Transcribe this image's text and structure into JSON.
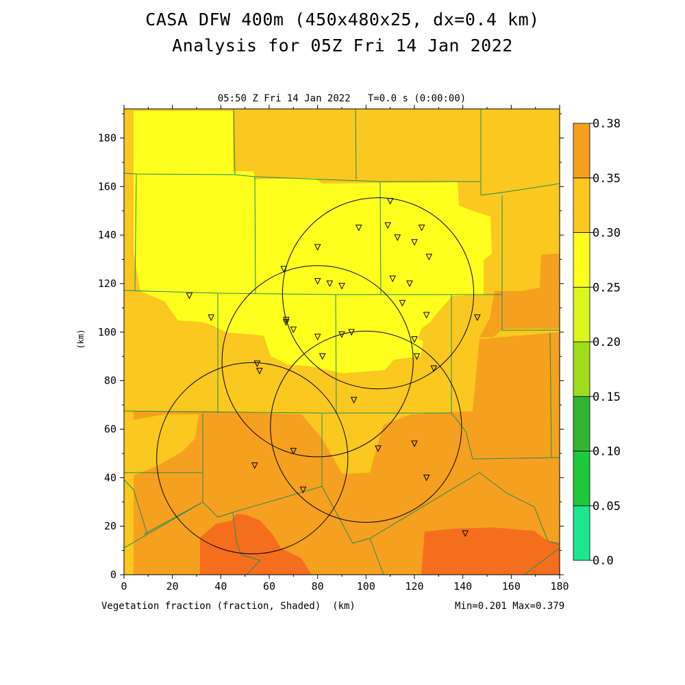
{
  "title_line1": "CASA DFW 400m (450x480x25, dx=0.4 km)",
  "title_line2": "Analysis for 05Z Fri 14 Jan 2022",
  "subtitle": "05:50 Z Fri 14 Jan 2022   T=0.0 s (0:00:00)",
  "field_label": "Vegetation fraction (fraction, Shaded)  (km)",
  "y_axis_label": "(km)",
  "min_max": "Min=0.201 Max=0.379",
  "x_ticks": [
    "0",
    "20",
    "40",
    "60",
    "80",
    "100",
    "120",
    "140",
    "160",
    "180"
  ],
  "y_ticks": [
    "0",
    "20",
    "40",
    "60",
    "80",
    "100",
    "120",
    "140",
    "160",
    "180"
  ],
  "colorbar": {
    "labels": [
      "0.0",
      "0.05",
      "0.10",
      "0.15",
      "0.20",
      "0.25",
      "0.30",
      "0.35",
      "0.38"
    ],
    "colors": [
      "#1ee68c",
      "#1ec83c",
      "#32b432",
      "#a0dc1e",
      "#dcf51e",
      "#ffff1e",
      "#fac81e",
      "#f5a01e",
      "#f56e1e"
    ]
  },
  "colors": {
    "yellow": "#ffff1e",
    "gold": "#fac81e",
    "orange": "#f5a01e",
    "deep_orange": "#f56e1e",
    "county_lines": "#1e8c5a",
    "radar_rings": "#000000"
  },
  "map": {
    "x_range_km": [
      0,
      180
    ],
    "y_range_km": [
      0,
      192
    ],
    "radar_rings": [
      {
        "cx_km": 105,
        "cy_km": 116,
        "r_km": 39.5
      },
      {
        "cx_km": 80,
        "cy_km": 88,
        "r_km": 39.5
      },
      {
        "cx_km": 100,
        "cy_km": 61,
        "r_km": 39.5
      },
      {
        "cx_km": 53,
        "cy_km": 48,
        "r_km": 39.5
      }
    ],
    "stations_km": [
      [
        110,
        154
      ],
      [
        97,
        143
      ],
      [
        109,
        144
      ],
      [
        113,
        139
      ],
      [
        123,
        143
      ],
      [
        120,
        137
      ],
      [
        126,
        131
      ],
      [
        80,
        135
      ],
      [
        66,
        126
      ],
      [
        80,
        121
      ],
      [
        85,
        120
      ],
      [
        90,
        119
      ],
      [
        111,
        122
      ],
      [
        118,
        120
      ],
      [
        115,
        112
      ],
      [
        125,
        107
      ],
      [
        146,
        106
      ],
      [
        27,
        115
      ],
      [
        36,
        106
      ],
      [
        67,
        105
      ],
      [
        67,
        104
      ],
      [
        70,
        101
      ],
      [
        80,
        98
      ],
      [
        90,
        99
      ],
      [
        94,
        100
      ],
      [
        120,
        97
      ],
      [
        121,
        90
      ],
      [
        128,
        85
      ],
      [
        82,
        90
      ],
      [
        55,
        87
      ],
      [
        56,
        84
      ],
      [
        95,
        72
      ],
      [
        70,
        51
      ],
      [
        105,
        52
      ],
      [
        120,
        54
      ],
      [
        54,
        45
      ],
      [
        74,
        35
      ],
      [
        125,
        40
      ],
      [
        141,
        17
      ]
    ]
  }
}
